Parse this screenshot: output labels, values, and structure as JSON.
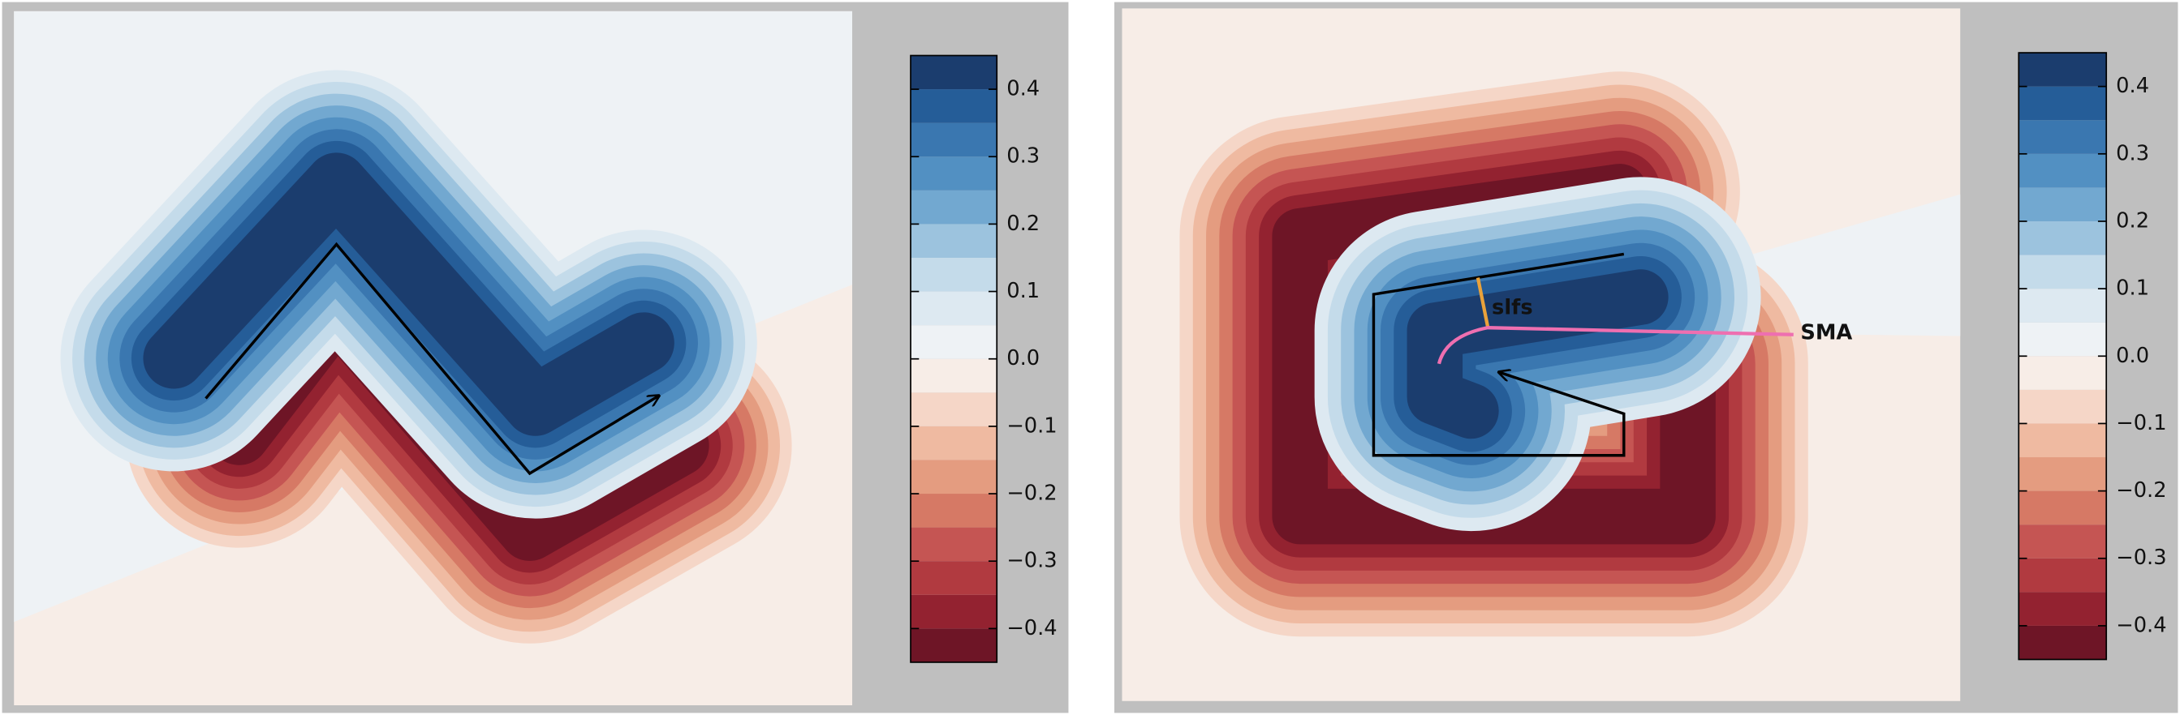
{
  "chart_data": [
    {
      "type": "contour",
      "colorbar": {
        "clim": [
          -0.45,
          0.45
        ],
        "ticks": [
          0.4,
          0.3,
          0.2,
          0.1,
          {
            "value": 0,
            "label": "0.0"
          },
          {
            "value": -0.1,
            "label": "−0.1"
          },
          {
            "value": -0.2,
            "label": "−0.2"
          },
          {
            "value": -0.3,
            "label": "−0.3"
          },
          {
            "value": -0.4,
            "label": "−0.4"
          }
        ],
        "colors": [
          "#6e1526",
          "#932230",
          "#b13a40",
          "#c55553",
          "#d67965",
          "#e49c80",
          "#efbaa1",
          "#f5d6c7",
          "#f7ede7",
          "#eef2f5",
          "#dde9f1",
          "#c4dbea",
          "#9cc3de",
          "#72a8d0",
          "#5290c2",
          "#3a77b0",
          "#255d98",
          "#1b3d6e"
        ]
      }
    },
    {
      "type": "contour",
      "colorbar": {
        "clim": [
          -0.45,
          0.45
        ],
        "ticks": [
          0.4,
          0.3,
          0.2,
          0.1,
          {
            "value": 0,
            "label": "0.0"
          },
          {
            "value": -0.1,
            "label": "−0.1"
          },
          {
            "value": -0.2,
            "label": "−0.2"
          },
          {
            "value": -0.3,
            "label": "−0.3"
          },
          {
            "value": -0.4,
            "label": "−0.4"
          }
        ],
        "colors": [
          "#6e1526",
          "#932230",
          "#b13a40",
          "#c55553",
          "#d67965",
          "#e49c80",
          "#efbaa1",
          "#f5d6c7",
          "#f7ede7",
          "#eef2f5",
          "#dde9f1",
          "#c4dbea",
          "#9cc3de",
          "#72a8d0",
          "#5290c2",
          "#3a77b0",
          "#255d98",
          "#1b3d6e"
        ]
      },
      "annotations": [
        {
          "text": "slfs",
          "color": "#e9a23b"
        },
        {
          "text": "SMA",
          "color": "#ee6fb0"
        }
      ]
    }
  ]
}
